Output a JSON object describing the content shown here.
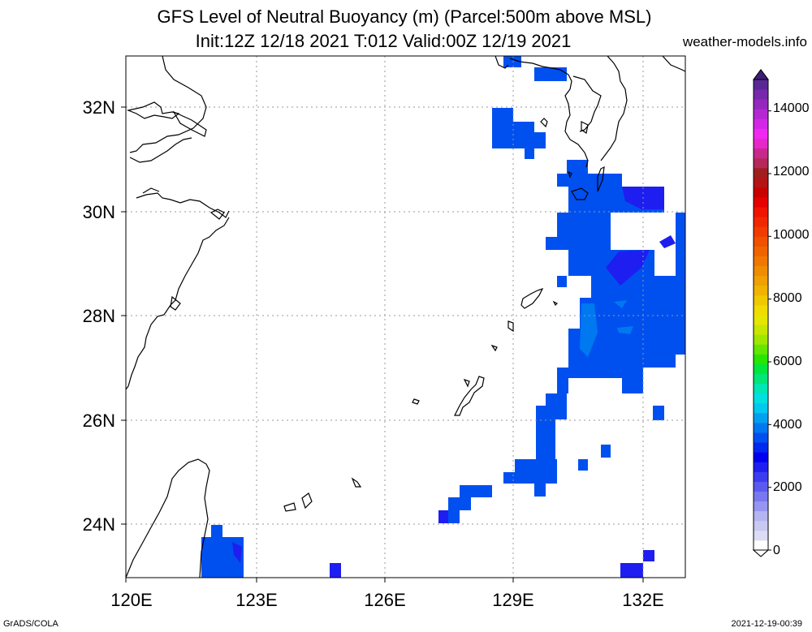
{
  "title_line1": "GFS Level of Neutral Buoyancy (m) (Parcel:500m above MSL)",
  "title_line2": "Init:12Z 12/18 2021 T:012 Valid:00Z 12/19 2021",
  "website": "weather-models.info",
  "footer_left": "GrADS/COLA",
  "footer_right": "2021-12-19-00:39",
  "map": {
    "lon_labels": [
      "120E",
      "123E",
      "126E",
      "129E",
      "132E"
    ],
    "lat_labels": [
      "32N",
      "30N",
      "28N",
      "26N",
      "24N"
    ],
    "lon_range": [
      120,
      133
    ],
    "lat_range": [
      23,
      33
    ]
  },
  "colorbar": {
    "labels": [
      "0",
      "2000",
      "4000",
      "6000",
      "8000",
      "10000",
      "12000",
      "14000"
    ],
    "max": 15000,
    "colors": [
      "#ffffff",
      "#dcdcf5",
      "#c8c8f0",
      "#b4b4f0",
      "#9696f0",
      "#7878f0",
      "#5a5af0",
      "#3c3cf0",
      "#1e1ef0",
      "#0000f0",
      "#0028f0",
      "#0050f0",
      "#0078f0",
      "#00a0f0",
      "#00c8f0",
      "#00e0e0",
      "#00e6b4",
      "#00e678",
      "#00e63c",
      "#28e600",
      "#64e600",
      "#a0e600",
      "#c8e600",
      "#e6e600",
      "#f0dc00",
      "#f0c800",
      "#f0b400",
      "#f0a000",
      "#f08c00",
      "#f07800",
      "#f06400",
      "#f05000",
      "#f03c00",
      "#f02800",
      "#f01400",
      "#e60000",
      "#c80000",
      "#b41414",
      "#a01e1e",
      "#b4285a",
      "#c8288c",
      "#e628c8",
      "#f028f0",
      "#d228e6",
      "#b428d2",
      "#9628be",
      "#7828aa",
      "#5a2896"
    ]
  },
  "field": {
    "primary_color": "#0050f0",
    "dark_color": "#1e1ef0",
    "light_color": "#0078f0"
  }
}
